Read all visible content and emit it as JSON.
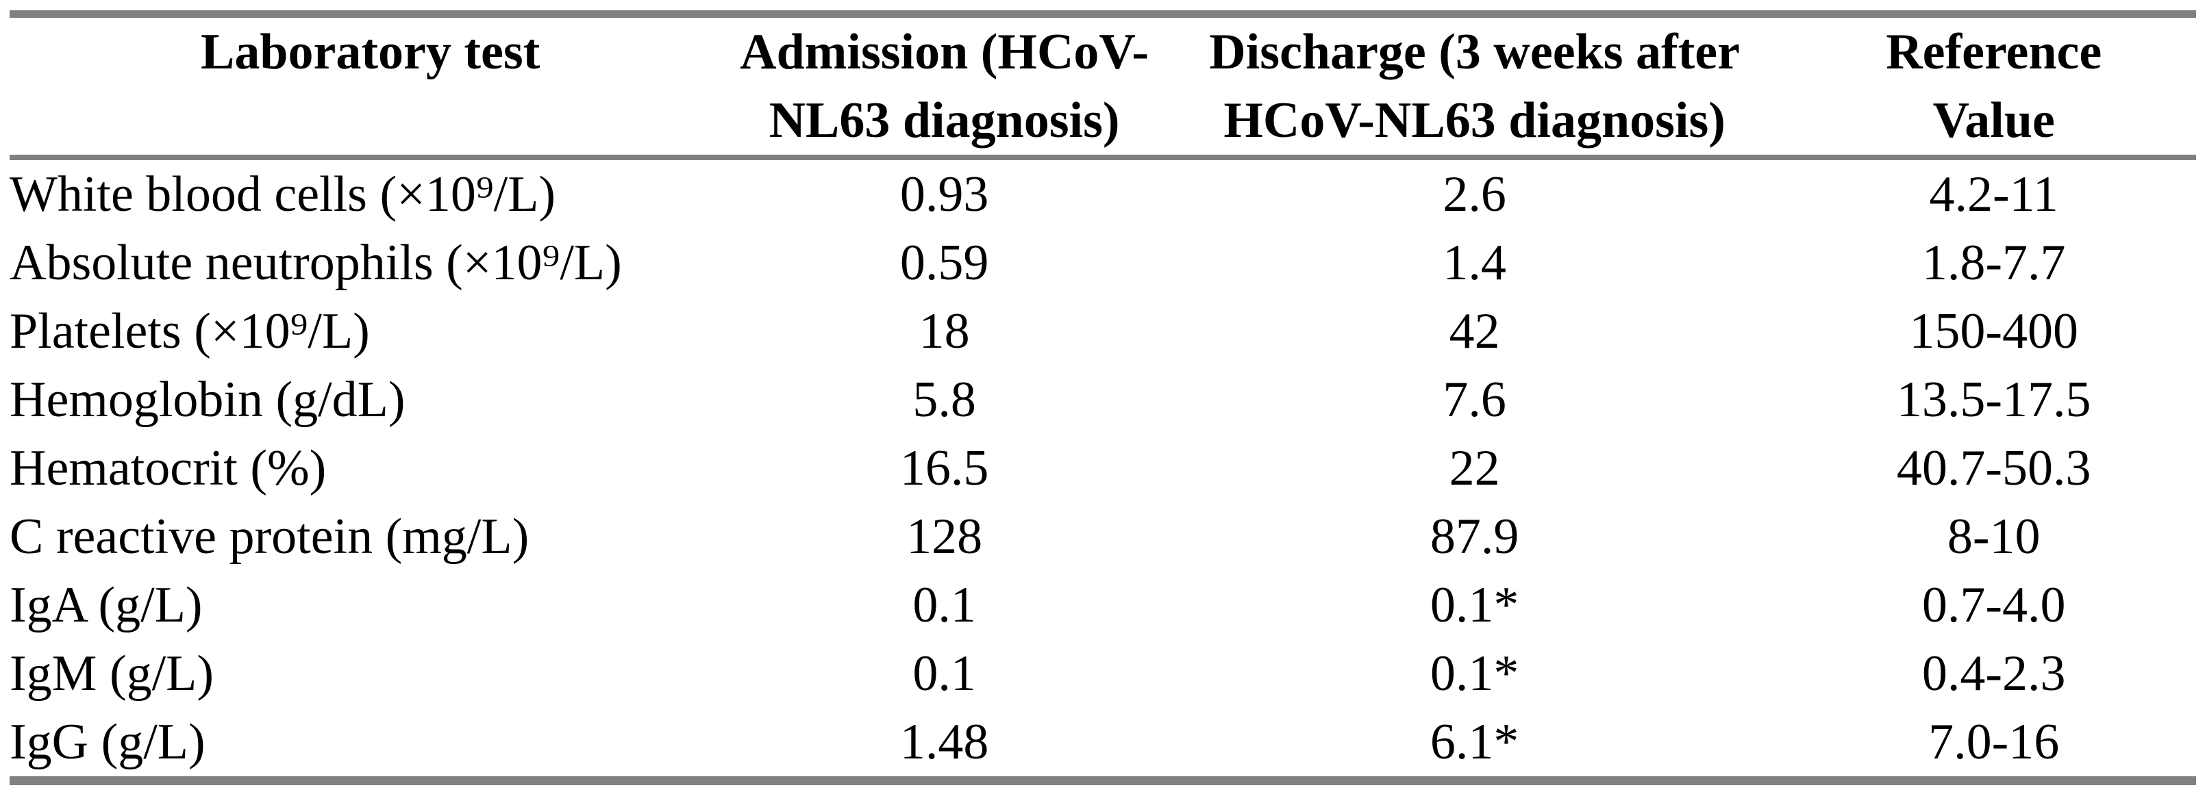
{
  "meta": {
    "rule_color": "#808080",
    "text_color": "#000000",
    "background_color": "#ffffff"
  },
  "table": {
    "headers": {
      "laboratory_test": "Laboratory test",
      "admission_line1": "Admission (HCoV-",
      "admission_line2": "NL63 diagnosis)",
      "discharge_line1": "Discharge (3 weeks after",
      "discharge_line2": "HCoV-NL63 diagnosis)",
      "reference_line1": "Reference",
      "reference_line2": "Value"
    },
    "rows": [
      {
        "test": "White blood cells (×10⁹/L)",
        "admission": "0.93",
        "discharge": "2.6",
        "reference": "4.2-11"
      },
      {
        "test": "Absolute neutrophils (×10⁹/L)",
        "admission": "0.59",
        "discharge": "1.4",
        "reference": "1.8-7.7"
      },
      {
        "test": "Platelets (×10⁹/L)",
        "admission": "18",
        "discharge": "42",
        "reference": "150-400"
      },
      {
        "test": "Hemoglobin (g/dL)",
        "admission": "5.8",
        "discharge": "7.6",
        "reference": "13.5-17.5"
      },
      {
        "test": "Hematocrit (%)",
        "admission": "16.5",
        "discharge": "22",
        "reference": "40.7-50.3"
      },
      {
        "test": "C reactive protein (mg/L)",
        "admission": "128",
        "discharge": "87.9",
        "reference": "8-10"
      },
      {
        "test": "IgA (g/L)",
        "admission": "0.1",
        "discharge": "0.1*",
        "reference": "0.7-4.0"
      },
      {
        "test": "IgM (g/L)",
        "admission": "0.1",
        "discharge": "0.1*",
        "reference": "0.4-2.3"
      },
      {
        "test": "IgG (g/L)",
        "admission": "1.48",
        "discharge": "6.1*",
        "reference": "7.0-16"
      }
    ]
  }
}
